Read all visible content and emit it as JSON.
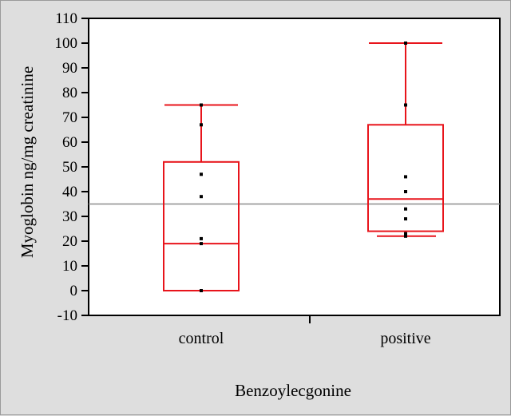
{
  "chart_data": {
    "type": "box",
    "xlabel": "Benzoylecgonine",
    "ylabel": "Myoglobin ng/mg creatinine",
    "ylim": [
      -10,
      110
    ],
    "yticks": [
      -10,
      0,
      10,
      20,
      30,
      40,
      50,
      60,
      70,
      80,
      90,
      100,
      110
    ],
    "categories": [
      "control",
      "positive"
    ],
    "reference_line": 35,
    "boxes": [
      {
        "category": "control",
        "whisker_low": 0,
        "q1": 0,
        "median": 19,
        "q3": 52,
        "whisker_high": 75
      },
      {
        "category": "positive",
        "whisker_low": 22,
        "q1": 24,
        "median": 37,
        "q3": 67,
        "whisker_high": 100
      }
    ],
    "points": [
      {
        "category": "control",
        "values": [
          75,
          67,
          47,
          38,
          21,
          19,
          0
        ]
      },
      {
        "category": "positive",
        "values": [
          100,
          75,
          46,
          40,
          33,
          29,
          23,
          22
        ]
      }
    ],
    "colors": {
      "box": "#e8141b",
      "reference_line": "#8c8c8c",
      "point": "#000000"
    }
  }
}
